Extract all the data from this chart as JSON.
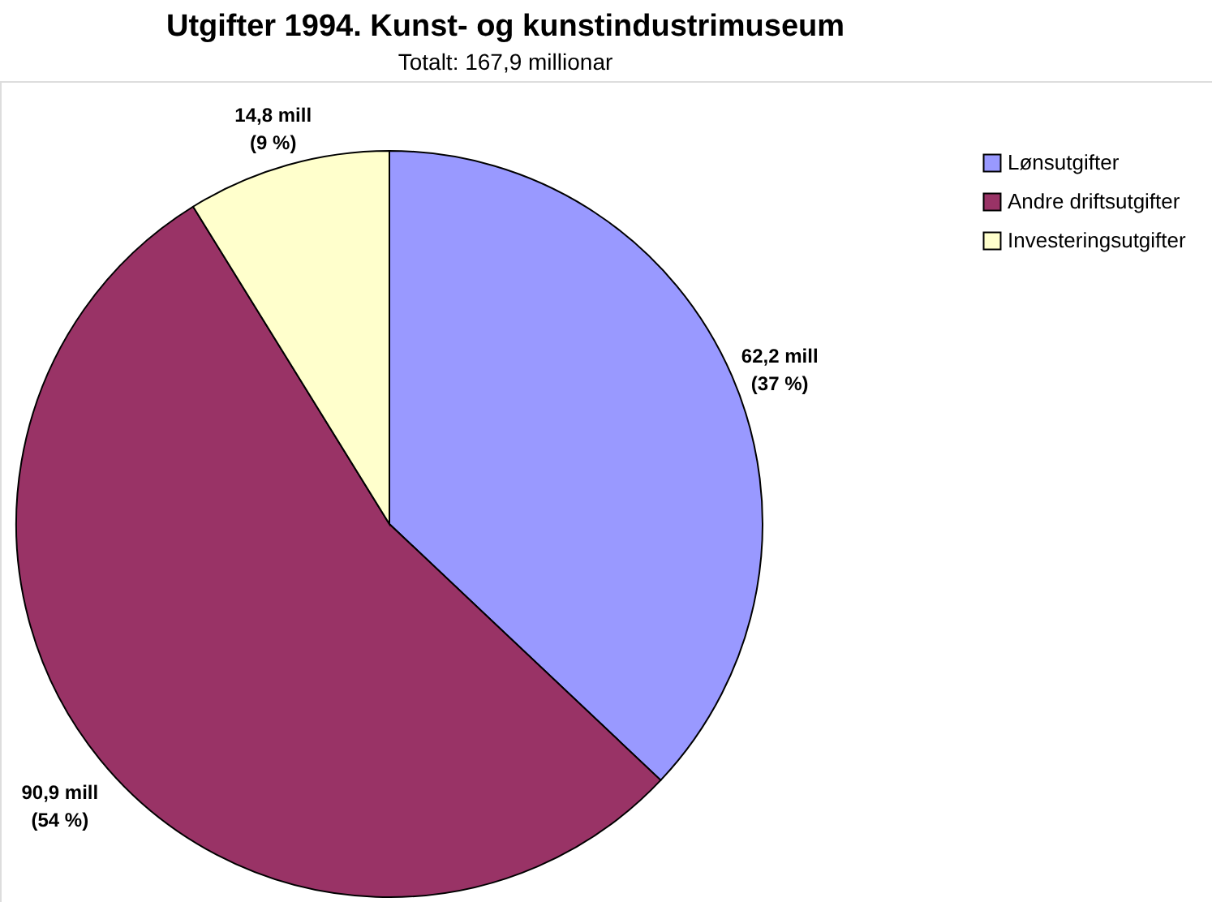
{
  "chart_data": {
    "type": "pie",
    "title": "Utgifter 1994. Kunst- og kunstindustrimuseum",
    "subtitle": "Totalt: 167,9 millionar",
    "categories": [
      "Lønsutgifter",
      "Andre driftsutgifter",
      "Investeringsutgifter"
    ],
    "values": [
      62.2,
      90.9,
      14.8
    ],
    "colors": [
      "#9999ff",
      "#993366",
      "#ffffcc"
    ],
    "value_labels": [
      "62,2 mill\n(37 %)",
      "90,9 mill\n(54 %)",
      "14,8 mill\n(9 %)"
    ],
    "legend": "top right"
  }
}
